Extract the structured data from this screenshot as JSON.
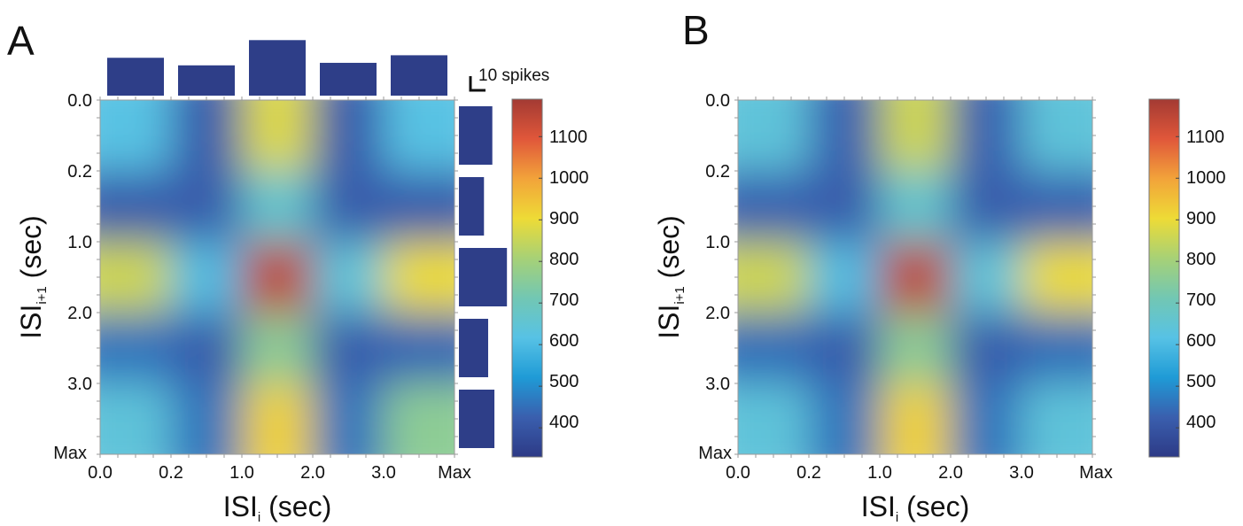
{
  "chart_data": [
    {
      "type": "heatmap",
      "panel_label": "A",
      "x_ticks": [
        "0.0",
        "0.2",
        "1.0",
        "2.0",
        "3.0",
        "Max"
      ],
      "y_ticks": [
        "0.0",
        "0.2",
        "1.0",
        "2.0",
        "3.0",
        "Max"
      ],
      "xlabel": {
        "main": "ISI",
        "sub": "i",
        "tail": " (sec)"
      },
      "ylabel": {
        "main": "ISI",
        "sub": "i+1",
        "tail": " (sec)"
      },
      "colorbar": {
        "ticks": [
          "1100",
          "1000",
          "900",
          "800",
          "700",
          "600",
          "500",
          "400"
        ],
        "range": [
          330,
          1190
        ]
      },
      "bins": [
        [
          620,
          420,
          880,
          420,
          620
        ],
        [
          420,
          420,
          660,
          420,
          420
        ],
        [
          860,
          600,
          1150,
          640,
          900
        ],
        [
          460,
          420,
          760,
          420,
          440
        ],
        [
          640,
          460,
          920,
          460,
          760
        ]
      ],
      "marginal_top": {
        "bins": [
          "0.0-0.2",
          "0.2-1.0",
          "1.0-2.0",
          "2.0-3.0",
          "3.0-Max"
        ],
        "values": [
          15,
          12,
          22,
          13,
          16
        ]
      },
      "marginal_right": {
        "bins": [
          "0.0-0.2",
          "0.2-1.0",
          "1.0-2.0",
          "2.0-3.0",
          "3.0-Max"
        ],
        "values": [
          16,
          12,
          23,
          14,
          17
        ]
      },
      "scale_bar_label": "10 spikes"
    },
    {
      "type": "heatmap",
      "panel_label": "B",
      "x_ticks": [
        "0.0",
        "0.2",
        "1.0",
        "2.0",
        "3.0",
        "Max"
      ],
      "y_ticks": [
        "0.0",
        "0.2",
        "1.0",
        "2.0",
        "3.0",
        "Max"
      ],
      "xlabel": {
        "main": "ISI",
        "sub": "i",
        "tail": " (sec)"
      },
      "ylabel": {
        "main": "ISI",
        "sub": "i+1",
        "tail": " (sec)"
      },
      "colorbar": {
        "ticks": [
          "1100",
          "1000",
          "900",
          "800",
          "700",
          "600",
          "500",
          "400"
        ],
        "range": [
          330,
          1190
        ]
      },
      "bins": [
        [
          640,
          430,
          860,
          430,
          640
        ],
        [
          430,
          420,
          660,
          420,
          430
        ],
        [
          860,
          600,
          1150,
          640,
          900
        ],
        [
          450,
          420,
          760,
          420,
          450
        ],
        [
          640,
          460,
          920,
          460,
          640
        ]
      ]
    }
  ],
  "colors": {
    "marginal_bar": "#2e3e88",
    "colormap": [
      "#2d3a86",
      "#3a5fae",
      "#1f9bd6",
      "#57c2e5",
      "#72c7b3",
      "#a7d176",
      "#eedb36",
      "#f2a33a",
      "#e0573a",
      "#a33a33"
    ]
  }
}
